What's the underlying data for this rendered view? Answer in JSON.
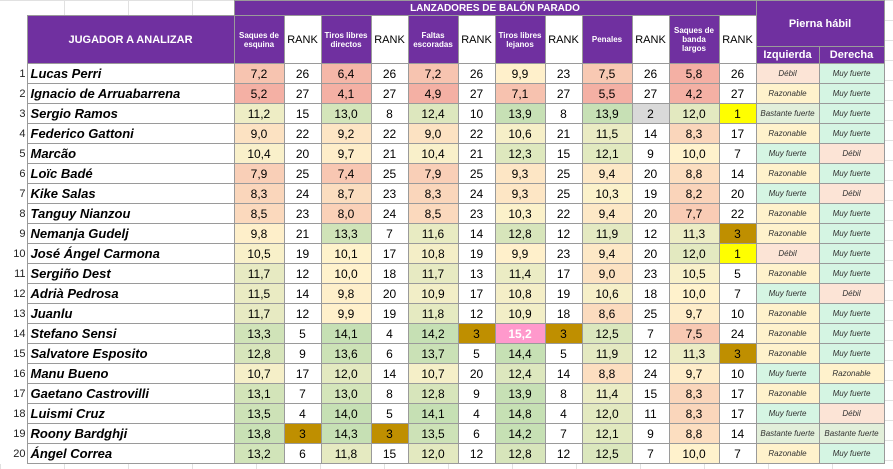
{
  "title": "LANZADORES DE BALÓN PARADO",
  "player_header": "JUGADOR A ANALIZAR",
  "leg_header": "Pierna hábil",
  "leg_cols": [
    "Izquierda",
    "Derecha"
  ],
  "stat_headers": [
    "Saques de esquina",
    "Tiros libres directos",
    "Faltas escoradas",
    "Tiros libres lejanos",
    "Penales",
    "Saques de banda largos"
  ],
  "rank_label": "RANK",
  "rows": [
    {
      "n": "1",
      "name": "Lucas Perri",
      "s": [
        {
          "v": "7,2",
          "r": "26"
        },
        {
          "v": "6,4",
          "r": "26"
        },
        {
          "v": "7,2",
          "r": "26"
        },
        {
          "v": "9,9",
          "r": "23"
        },
        {
          "v": "7,5",
          "r": "26"
        },
        {
          "v": "5,8",
          "r": "26"
        }
      ],
      "izq": "Débil",
      "der": "Muy fuerte"
    },
    {
      "n": "2",
      "name": "Ignacio de Arruabarrena",
      "s": [
        {
          "v": "5,2",
          "r": "27"
        },
        {
          "v": "4,1",
          "r": "27"
        },
        {
          "v": "4,9",
          "r": "27"
        },
        {
          "v": "7,1",
          "r": "27"
        },
        {
          "v": "5,5",
          "r": "27"
        },
        {
          "v": "4,2",
          "r": "27"
        }
      ],
      "izq": "Razonable",
      "der": "Muy fuerte"
    },
    {
      "n": "3",
      "name": "Sergio Ramos",
      "s": [
        {
          "v": "11,2",
          "r": "15"
        },
        {
          "v": "13,0",
          "r": "8"
        },
        {
          "v": "12,4",
          "r": "10"
        },
        {
          "v": "13,9",
          "r": "8"
        },
        {
          "v": "13,9",
          "r": "2"
        },
        {
          "v": "12,0",
          "r": "1"
        }
      ],
      "izq": "Bastante fuerte",
      "der": "Muy fuerte"
    },
    {
      "n": "4",
      "name": "Federico Gattoni",
      "s": [
        {
          "v": "9,0",
          "r": "22"
        },
        {
          "v": "9,2",
          "r": "22"
        },
        {
          "v": "9,0",
          "r": "22"
        },
        {
          "v": "10,6",
          "r": "21"
        },
        {
          "v": "11,5",
          "r": "14"
        },
        {
          "v": "8,3",
          "r": "17"
        }
      ],
      "izq": "Razonable",
      "der": "Muy fuerte"
    },
    {
      "n": "5",
      "name": "Marcão",
      "s": [
        {
          "v": "10,4",
          "r": "20"
        },
        {
          "v": "9,7",
          "r": "21"
        },
        {
          "v": "10,4",
          "r": "21"
        },
        {
          "v": "12,3",
          "r": "15"
        },
        {
          "v": "12,1",
          "r": "9"
        },
        {
          "v": "10,0",
          "r": "7"
        }
      ],
      "izq": "Muy fuerte",
      "der": "Débil"
    },
    {
      "n": "6",
      "name": "Loïc Badé",
      "s": [
        {
          "v": "7,9",
          "r": "25"
        },
        {
          "v": "7,4",
          "r": "25"
        },
        {
          "v": "7,9",
          "r": "25"
        },
        {
          "v": "9,3",
          "r": "25"
        },
        {
          "v": "9,4",
          "r": "20"
        },
        {
          "v": "8,8",
          "r": "14"
        }
      ],
      "izq": "Razonable",
      "der": "Muy fuerte"
    },
    {
      "n": "7",
      "name": "Kike Salas",
      "s": [
        {
          "v": "8,3",
          "r": "24"
        },
        {
          "v": "8,7",
          "r": "23"
        },
        {
          "v": "8,3",
          "r": "24"
        },
        {
          "v": "9,3",
          "r": "25"
        },
        {
          "v": "10,3",
          "r": "19"
        },
        {
          "v": "8,2",
          "r": "20"
        }
      ],
      "izq": "Muy fuerte",
      "der": "Débil"
    },
    {
      "n": "8",
      "name": "Tanguy Nianzou",
      "s": [
        {
          "v": "8,5",
          "r": "23"
        },
        {
          "v": "8,0",
          "r": "24"
        },
        {
          "v": "8,5",
          "r": "23"
        },
        {
          "v": "10,3",
          "r": "22"
        },
        {
          "v": "9,4",
          "r": "20"
        },
        {
          "v": "7,7",
          "r": "22"
        }
      ],
      "izq": "Razonable",
      "der": "Muy fuerte"
    },
    {
      "n": "9",
      "name": "Nemanja Gudelj",
      "s": [
        {
          "v": "9,8",
          "r": "21"
        },
        {
          "v": "13,3",
          "r": "7"
        },
        {
          "v": "11,6",
          "r": "14"
        },
        {
          "v": "12,8",
          "r": "12"
        },
        {
          "v": "11,9",
          "r": "12"
        },
        {
          "v": "11,3",
          "r": "3"
        }
      ],
      "izq": "Razonable",
      "der": "Muy fuerte"
    },
    {
      "n": "10",
      "name": "José Ángel Carmona",
      "s": [
        {
          "v": "10,5",
          "r": "19"
        },
        {
          "v": "10,1",
          "r": "17"
        },
        {
          "v": "10,8",
          "r": "19"
        },
        {
          "v": "9,9",
          "r": "23"
        },
        {
          "v": "9,4",
          "r": "20"
        },
        {
          "v": "12,0",
          "r": "1"
        }
      ],
      "izq": "Débil",
      "der": "Muy fuerte"
    },
    {
      "n": "11",
      "name": "Sergiño Dest",
      "s": [
        {
          "v": "11,7",
          "r": "12"
        },
        {
          "v": "10,0",
          "r": "18"
        },
        {
          "v": "11,7",
          "r": "13"
        },
        {
          "v": "11,4",
          "r": "17"
        },
        {
          "v": "9,0",
          "r": "23"
        },
        {
          "v": "10,5",
          "r": "5"
        }
      ],
      "izq": "Razonable",
      "der": "Muy fuerte"
    },
    {
      "n": "12",
      "name": "Adrià Pedrosa",
      "s": [
        {
          "v": "11,5",
          "r": "14"
        },
        {
          "v": "9,8",
          "r": "20"
        },
        {
          "v": "10,9",
          "r": "17"
        },
        {
          "v": "10,8",
          "r": "19"
        },
        {
          "v": "10,6",
          "r": "18"
        },
        {
          "v": "10,0",
          "r": "7"
        }
      ],
      "izq": "Muy fuerte",
      "der": "Débil"
    },
    {
      "n": "13",
      "name": "Juanlu",
      "s": [
        {
          "v": "11,7",
          "r": "12"
        },
        {
          "v": "9,9",
          "r": "19"
        },
        {
          "v": "11,8",
          "r": "12"
        },
        {
          "v": "10,9",
          "r": "18"
        },
        {
          "v": "8,6",
          "r": "25"
        },
        {
          "v": "9,7",
          "r": "10"
        }
      ],
      "izq": "Razonable",
      "der": "Muy fuerte"
    },
    {
      "n": "14",
      "name": "Stefano Sensi",
      "s": [
        {
          "v": "13,3",
          "r": "5"
        },
        {
          "v": "14,1",
          "r": "4"
        },
        {
          "v": "14,2",
          "r": "3"
        },
        {
          "v": "15,2",
          "r": "3"
        },
        {
          "v": "12,5",
          "r": "7"
        },
        {
          "v": "7,5",
          "r": "24"
        }
      ],
      "izq": "Razonable",
      "der": "Muy fuerte"
    },
    {
      "n": "15",
      "name": "Salvatore Esposito",
      "s": [
        {
          "v": "12,8",
          "r": "9"
        },
        {
          "v": "13,6",
          "r": "6"
        },
        {
          "v": "13,7",
          "r": "5"
        },
        {
          "v": "14,4",
          "r": "5"
        },
        {
          "v": "11,9",
          "r": "12"
        },
        {
          "v": "11,3",
          "r": "3"
        }
      ],
      "izq": "Razonable",
      "der": "Muy fuerte"
    },
    {
      "n": "16",
      "name": "Manu Bueno",
      "s": [
        {
          "v": "10,7",
          "r": "17"
        },
        {
          "v": "12,0",
          "r": "14"
        },
        {
          "v": "10,7",
          "r": "20"
        },
        {
          "v": "12,4",
          "r": "14"
        },
        {
          "v": "8,8",
          "r": "24"
        },
        {
          "v": "9,7",
          "r": "10"
        }
      ],
      "izq": "Muy fuerte",
      "der": "Razonable"
    },
    {
      "n": "17",
      "name": "Gaetano Castrovilli",
      "s": [
        {
          "v": "13,1",
          "r": "7"
        },
        {
          "v": "13,0",
          "r": "8"
        },
        {
          "v": "12,8",
          "r": "9"
        },
        {
          "v": "13,9",
          "r": "8"
        },
        {
          "v": "11,4",
          "r": "15"
        },
        {
          "v": "8,3",
          "r": "17"
        }
      ],
      "izq": "Razonable",
      "der": "Muy fuerte"
    },
    {
      "n": "18",
      "name": "Luismi Cruz",
      "s": [
        {
          "v": "13,5",
          "r": "4"
        },
        {
          "v": "14,0",
          "r": "5"
        },
        {
          "v": "14,1",
          "r": "4"
        },
        {
          "v": "14,8",
          "r": "4"
        },
        {
          "v": "12,0",
          "r": "11"
        },
        {
          "v": "8,3",
          "r": "17"
        }
      ],
      "izq": "Muy fuerte",
      "der": "Débil"
    },
    {
      "n": "19",
      "name": "Roony Bardghji",
      "s": [
        {
          "v": "13,8",
          "r": "3"
        },
        {
          "v": "14,3",
          "r": "3"
        },
        {
          "v": "13,5",
          "r": "6"
        },
        {
          "v": "14,2",
          "r": "7"
        },
        {
          "v": "12,1",
          "r": "9"
        },
        {
          "v": "8,8",
          "r": "14"
        }
      ],
      "izq": "Bastante fuerte",
      "der": "Bastante fuerte"
    },
    {
      "n": "20",
      "name": "Ángel Correa",
      "s": [
        {
          "v": "13,2",
          "r": "6"
        },
        {
          "v": "11,8",
          "r": "15"
        },
        {
          "v": "12,0",
          "r": "12"
        },
        {
          "v": "12,8",
          "r": "12"
        },
        {
          "v": "12,5",
          "r": "7"
        },
        {
          "v": "10,0",
          "r": "7"
        }
      ],
      "izq": "Razonable",
      "der": "Muy fuerte"
    }
  ],
  "colors": {
    "header_purple": "#7030a0",
    "gold_rank": "#bf8f00",
    "yellow_rank": "#ffff00",
    "silver_rank": "#d9d9d9",
    "pink_highlight": "#ff99cc",
    "leg_weak": "#fce4d6",
    "leg_reasonable": "#fff2cc",
    "leg_quite_strong": "#e2efda",
    "leg_very_strong": "#d5f5e3"
  }
}
